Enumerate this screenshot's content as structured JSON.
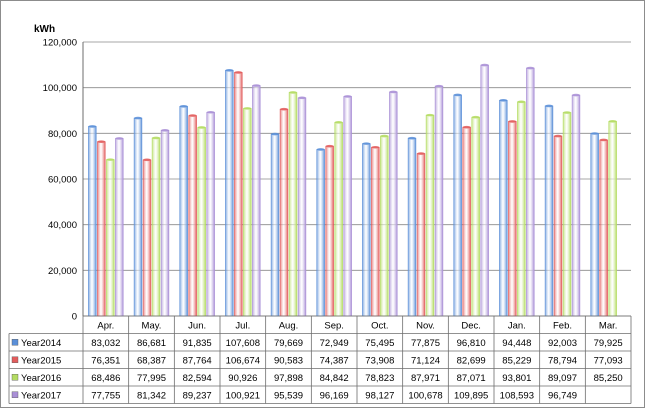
{
  "chart_data": {
    "type": "bar",
    "unit_label": "kWh",
    "categories": [
      "Apr.",
      "May.",
      "Jun.",
      "Jul.",
      "Aug.",
      "Sep.",
      "Oct.",
      "Nov.",
      "Dec.",
      "Jan.",
      "Feb.",
      "Mar."
    ],
    "ylim": [
      0,
      120000
    ],
    "yticks": [
      "0",
      "20,000",
      "40,000",
      "60,000",
      "80,000",
      "100,000",
      "120,000"
    ],
    "grid": true,
    "legend": "data-table",
    "series": [
      {
        "name": "Year2014",
        "color": "#5b8fd8",
        "values": [
          83032,
          86681,
          91835,
          107608,
          79669,
          72949,
          75495,
          77875,
          96810,
          94448,
          92003,
          79925
        ],
        "labels": [
          "83,032",
          "86,681",
          "91,835",
          "107,608",
          "79,669",
          "72,949",
          "75,495",
          "77,875",
          "96,810",
          "94,448",
          "92,003",
          "79,925"
        ]
      },
      {
        "name": "Year2015",
        "color": "#e25c5c",
        "values": [
          76351,
          68387,
          87764,
          106674,
          90583,
          74387,
          73908,
          71124,
          82699,
          85229,
          78794,
          77093
        ],
        "labels": [
          "76,351",
          "68,387",
          "87,764",
          "106,674",
          "90,583",
          "74,387",
          "73,908",
          "71,124",
          "82,699",
          "85,229",
          "78,794",
          "77,093"
        ]
      },
      {
        "name": "Year2016",
        "color": "#b4dc62",
        "values": [
          68486,
          77995,
          82594,
          90926,
          97898,
          84842,
          78823,
          87971,
          87071,
          93801,
          89097,
          85250
        ],
        "labels": [
          "68,486",
          "77,995",
          "82,594",
          "90,926",
          "97,898",
          "84,842",
          "78,823",
          "87,971",
          "87,071",
          "93,801",
          "89,097",
          "85,250"
        ]
      },
      {
        "name": "Year2017",
        "color": "#a98fd6",
        "values": [
          77755,
          81342,
          89237,
          100921,
          95539,
          96169,
          98127,
          100678,
          109895,
          108593,
          96749,
          null
        ],
        "labels": [
          "77,755",
          "81,342",
          "89,237",
          "100,921",
          "95,539",
          "96,169",
          "98,127",
          "100,678",
          "109,895",
          "108,593",
          "96,749",
          ""
        ]
      }
    ]
  }
}
